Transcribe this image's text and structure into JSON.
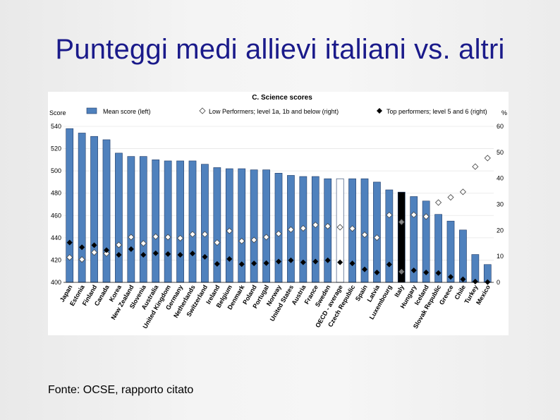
{
  "slide": {
    "title": "Punteggi medi allievi italiani vs. altri",
    "source": "Fonte: OCSE, rapporto citato"
  },
  "chart_data": {
    "type": "bar",
    "title": "C. Science scores",
    "ylabel_left": "Score",
    "ylabel_right": "%",
    "ylim_left": [
      400,
      540
    ],
    "ylim_right": [
      0,
      60
    ],
    "yticks_left": [
      400,
      420,
      440,
      460,
      480,
      500,
      520,
      540
    ],
    "yticks_right": [
      0,
      10,
      20,
      30,
      40,
      50,
      60
    ],
    "legend": {
      "placement": "top",
      "mean_label": "Mean score (left)",
      "low_label": "Low Performers; level 1a, 1b and below (right)",
      "top_label": "Top performers; level 5 and 6 (right)"
    },
    "colors": {
      "bar": "#4f81bd",
      "bar_outline": "#1f3a66",
      "highlight_bar": "#000000",
      "oecd_bar": "#ffffff",
      "low_marker": "#ffffff",
      "top_marker": "#000000",
      "title_color": "#1a1a8a"
    },
    "categories": [
      "Japan",
      "Estonia",
      "Finland",
      "Canada",
      "Korea",
      "New Zealand",
      "Slovenia",
      "Australia",
      "United Kingdom",
      "Germany",
      "Netherlands",
      "Switzerland",
      "Ireland",
      "Belgium",
      "Denmark",
      "Poland",
      "Portugal",
      "Norway",
      "United States",
      "Austria",
      "France",
      "Sweden",
      "OECD - average",
      "Czech Republic",
      "Spain",
      "Latvia",
      "Luxembourg",
      "Italy",
      "Hungary",
      "Iceland",
      "Slovak Republic",
      "Greece",
      "Chile",
      "Turkey",
      "Mexico"
    ],
    "series": [
      {
        "name": "Mean score (left)",
        "axis": "left",
        "values": [
          538,
          534,
          531,
          528,
          516,
          513,
          513,
          510,
          509,
          509,
          509,
          506,
          503,
          502,
          502,
          501,
          501,
          498,
          496,
          495,
          495,
          493,
          493,
          493,
          493,
          490,
          483,
          481,
          477,
          473,
          461,
          455,
          447,
          425,
          416
        ]
      },
      {
        "name": "Low Performers; level 1a, 1b and below (right)",
        "axis": "right",
        "values": [
          9.6,
          8.8,
          11.5,
          11.1,
          14.4,
          17.4,
          15.0,
          17.6,
          17.4,
          17.0,
          18.5,
          18.5,
          15.3,
          19.8,
          15.9,
          16.3,
          17.4,
          18.7,
          20.3,
          20.8,
          22.1,
          21.6,
          21.2,
          20.7,
          18.3,
          17.2,
          25.9,
          23.2,
          26.0,
          25.3,
          30.7,
          32.7,
          34.8,
          44.5,
          47.8
        ]
      },
      {
        "name": "Top performers; level 5 and 6 (right)",
        "axis": "right",
        "values": [
          15.3,
          13.5,
          14.3,
          12.4,
          10.6,
          12.8,
          10.6,
          11.2,
          10.9,
          10.6,
          11.1,
          9.8,
          7.1,
          9.0,
          7.0,
          7.3,
          7.4,
          8.0,
          8.5,
          7.7,
          8.0,
          8.5,
          7.7,
          7.3,
          5.0,
          3.8,
          6.9,
          4.1,
          4.6,
          3.8,
          3.6,
          2.1,
          1.2,
          0.3,
          0.1
        ]
      }
    ]
  }
}
